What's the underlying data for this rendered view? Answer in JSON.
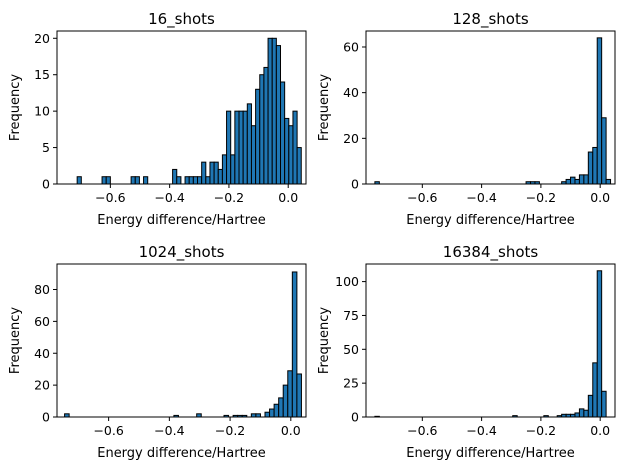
{
  "chart_data": [
    {
      "type": "bar",
      "title": "16_shots",
      "xlabel": "Energy difference/Hartree",
      "ylabel": "Frequency",
      "xlim": [
        -0.78,
        0.06
      ],
      "ylim": [
        0,
        21
      ],
      "xticks": [
        -0.6,
        -0.4,
        -0.2,
        0.0
      ],
      "xtick_labels": [
        "−0.6",
        "−0.4",
        "−0.2",
        "0.0"
      ],
      "yticks": [
        0,
        5,
        10,
        15,
        20
      ],
      "ytick_labels": [
        "0",
        "5",
        "10",
        "15",
        "20"
      ],
      "bar_color": "#1f77b4",
      "edge_color": "#000000",
      "bins": [
        {
          "x0": -0.712,
          "x1": -0.698,
          "y": 1
        },
        {
          "x0": -0.628,
          "x1": -0.614,
          "y": 1
        },
        {
          "x0": -0.614,
          "x1": -0.6,
          "y": 1
        },
        {
          "x0": -0.53,
          "x1": -0.516,
          "y": 1
        },
        {
          "x0": -0.516,
          "x1": -0.502,
          "y": 1
        },
        {
          "x0": -0.488,
          "x1": -0.474,
          "y": 1
        },
        {
          "x0": -0.39,
          "x1": -0.376,
          "y": 2
        },
        {
          "x0": -0.376,
          "x1": -0.362,
          "y": 1
        },
        {
          "x0": -0.348,
          "x1": -0.334,
          "y": 1
        },
        {
          "x0": -0.334,
          "x1": -0.32,
          "y": 1
        },
        {
          "x0": -0.32,
          "x1": -0.306,
          "y": 1
        },
        {
          "x0": -0.306,
          "x1": -0.292,
          "y": 1
        },
        {
          "x0": -0.292,
          "x1": -0.278,
          "y": 3
        },
        {
          "x0": -0.278,
          "x1": -0.264,
          "y": 1
        },
        {
          "x0": -0.264,
          "x1": -0.25,
          "y": 3
        },
        {
          "x0": -0.25,
          "x1": -0.236,
          "y": 3
        },
        {
          "x0": -0.236,
          "x1": -0.222,
          "y": 2
        },
        {
          "x0": -0.222,
          "x1": -0.208,
          "y": 4
        },
        {
          "x0": -0.208,
          "x1": -0.194,
          "y": 10
        },
        {
          "x0": -0.194,
          "x1": -0.18,
          "y": 4
        },
        {
          "x0": -0.18,
          "x1": -0.166,
          "y": 10
        },
        {
          "x0": -0.166,
          "x1": -0.152,
          "y": 10
        },
        {
          "x0": -0.152,
          "x1": -0.138,
          "y": 10
        },
        {
          "x0": -0.138,
          "x1": -0.124,
          "y": 11
        },
        {
          "x0": -0.124,
          "x1": -0.11,
          "y": 8
        },
        {
          "x0": -0.11,
          "x1": -0.096,
          "y": 13
        },
        {
          "x0": -0.096,
          "x1": -0.082,
          "y": 15
        },
        {
          "x0": -0.082,
          "x1": -0.068,
          "y": 16
        },
        {
          "x0": -0.068,
          "x1": -0.054,
          "y": 20
        },
        {
          "x0": -0.054,
          "x1": -0.04,
          "y": 20
        },
        {
          "x0": -0.04,
          "x1": -0.026,
          "y": 19
        },
        {
          "x0": -0.026,
          "x1": -0.012,
          "y": 14
        },
        {
          "x0": -0.012,
          "x1": 0.002,
          "y": 9
        },
        {
          "x0": 0.002,
          "x1": 0.016,
          "y": 8
        },
        {
          "x0": 0.016,
          "x1": 0.03,
          "y": 10
        },
        {
          "x0": 0.03,
          "x1": 0.044,
          "y": 5
        }
      ]
    },
    {
      "type": "bar",
      "title": "128_shots",
      "xlabel": "Energy difference/Hartree",
      "ylabel": "Frequency",
      "xlim": [
        -0.79,
        0.05
      ],
      "ylim": [
        0,
        67
      ],
      "xticks": [
        -0.6,
        -0.4,
        -0.2,
        0.0
      ],
      "xtick_labels": [
        "−0.6",
        "−0.4",
        "−0.2",
        "0.0"
      ],
      "yticks": [
        0,
        20,
        40,
        60
      ],
      "ytick_labels": [
        "0",
        "20",
        "40",
        "60"
      ],
      "bar_color": "#1f77b4",
      "edge_color": "#000000",
      "bins": [
        {
          "x0": -0.76,
          "x1": -0.745,
          "y": 1
        },
        {
          "x0": -0.25,
          "x1": -0.235,
          "y": 1
        },
        {
          "x0": -0.235,
          "x1": -0.22,
          "y": 1
        },
        {
          "x0": -0.22,
          "x1": -0.205,
          "y": 1
        },
        {
          "x0": -0.13,
          "x1": -0.115,
          "y": 1
        },
        {
          "x0": -0.115,
          "x1": -0.1,
          "y": 2
        },
        {
          "x0": -0.1,
          "x1": -0.085,
          "y": 3
        },
        {
          "x0": -0.085,
          "x1": -0.07,
          "y": 2
        },
        {
          "x0": -0.07,
          "x1": -0.055,
          "y": 4
        },
        {
          "x0": -0.055,
          "x1": -0.04,
          "y": 4
        },
        {
          "x0": -0.04,
          "x1": -0.025,
          "y": 14
        },
        {
          "x0": -0.025,
          "x1": -0.01,
          "y": 16
        },
        {
          "x0": -0.01,
          "x1": 0.005,
          "y": 64
        },
        {
          "x0": 0.005,
          "x1": 0.02,
          "y": 29
        },
        {
          "x0": 0.02,
          "x1": 0.035,
          "y": 2
        }
      ]
    },
    {
      "type": "bar",
      "title": "1024_shots",
      "xlabel": "Energy difference/Hartree",
      "ylabel": "Frequency",
      "xlim": [
        -0.77,
        0.05
      ],
      "ylim": [
        0,
        96
      ],
      "xticks": [
        -0.6,
        -0.4,
        -0.2,
        0.0
      ],
      "xtick_labels": [
        "−0.6",
        "−0.4",
        "−0.2",
        "0.0"
      ],
      "yticks": [
        0,
        20,
        40,
        60,
        80
      ],
      "ytick_labels": [
        "0",
        "20",
        "40",
        "60",
        "80"
      ],
      "bar_color": "#1f77b4",
      "edge_color": "#000000",
      "bins": [
        {
          "x0": -0.745,
          "x1": -0.73,
          "y": 2
        },
        {
          "x0": -0.385,
          "x1": -0.37,
          "y": 1
        },
        {
          "x0": -0.31,
          "x1": -0.295,
          "y": 2
        },
        {
          "x0": -0.22,
          "x1": -0.205,
          "y": 1
        },
        {
          "x0": -0.19,
          "x1": -0.175,
          "y": 1
        },
        {
          "x0": -0.175,
          "x1": -0.16,
          "y": 1
        },
        {
          "x0": -0.16,
          "x1": -0.145,
          "y": 1
        },
        {
          "x0": -0.13,
          "x1": -0.115,
          "y": 2
        },
        {
          "x0": -0.115,
          "x1": -0.1,
          "y": 2
        },
        {
          "x0": -0.085,
          "x1": -0.07,
          "y": 3
        },
        {
          "x0": -0.07,
          "x1": -0.055,
          "y": 5
        },
        {
          "x0": -0.055,
          "x1": -0.04,
          "y": 8
        },
        {
          "x0": -0.04,
          "x1": -0.025,
          "y": 12
        },
        {
          "x0": -0.025,
          "x1": -0.01,
          "y": 20
        },
        {
          "x0": -0.01,
          "x1": 0.005,
          "y": 29
        },
        {
          "x0": 0.005,
          "x1": 0.02,
          "y": 91
        },
        {
          "x0": 0.02,
          "x1": 0.035,
          "y": 27
        }
      ]
    },
    {
      "type": "bar",
      "title": "16384_shots",
      "xlabel": "Energy difference/Hartree",
      "ylabel": "Frequency",
      "xlim": [
        -0.79,
        0.05
      ],
      "ylim": [
        0,
        113
      ],
      "xticks": [
        -0.6,
        -0.4,
        -0.2,
        0.0
      ],
      "xtick_labels": [
        "−0.6",
        "−0.4",
        "−0.2",
        "0.0"
      ],
      "yticks": [
        0,
        25,
        50,
        75,
        100
      ],
      "ytick_labels": [
        "0",
        "25",
        "50",
        "75",
        "100"
      ],
      "bar_color": "#1f77b4",
      "edge_color": "#000000",
      "bins": [
        {
          "x0": -0.76,
          "x1": -0.745,
          "y": 0.5
        },
        {
          "x0": -0.295,
          "x1": -0.28,
          "y": 1
        },
        {
          "x0": -0.19,
          "x1": -0.175,
          "y": 1
        },
        {
          "x0": -0.145,
          "x1": -0.13,
          "y": 1
        },
        {
          "x0": -0.13,
          "x1": -0.115,
          "y": 2
        },
        {
          "x0": -0.115,
          "x1": -0.1,
          "y": 2
        },
        {
          "x0": -0.1,
          "x1": -0.085,
          "y": 2
        },
        {
          "x0": -0.085,
          "x1": -0.07,
          "y": 3
        },
        {
          "x0": -0.07,
          "x1": -0.055,
          "y": 6
        },
        {
          "x0": -0.055,
          "x1": -0.04,
          "y": 5
        },
        {
          "x0": -0.04,
          "x1": -0.025,
          "y": 16
        },
        {
          "x0": -0.025,
          "x1": -0.01,
          "y": 40
        },
        {
          "x0": -0.01,
          "x1": 0.005,
          "y": 108
        },
        {
          "x0": 0.005,
          "x1": 0.02,
          "y": 19
        }
      ]
    }
  ]
}
